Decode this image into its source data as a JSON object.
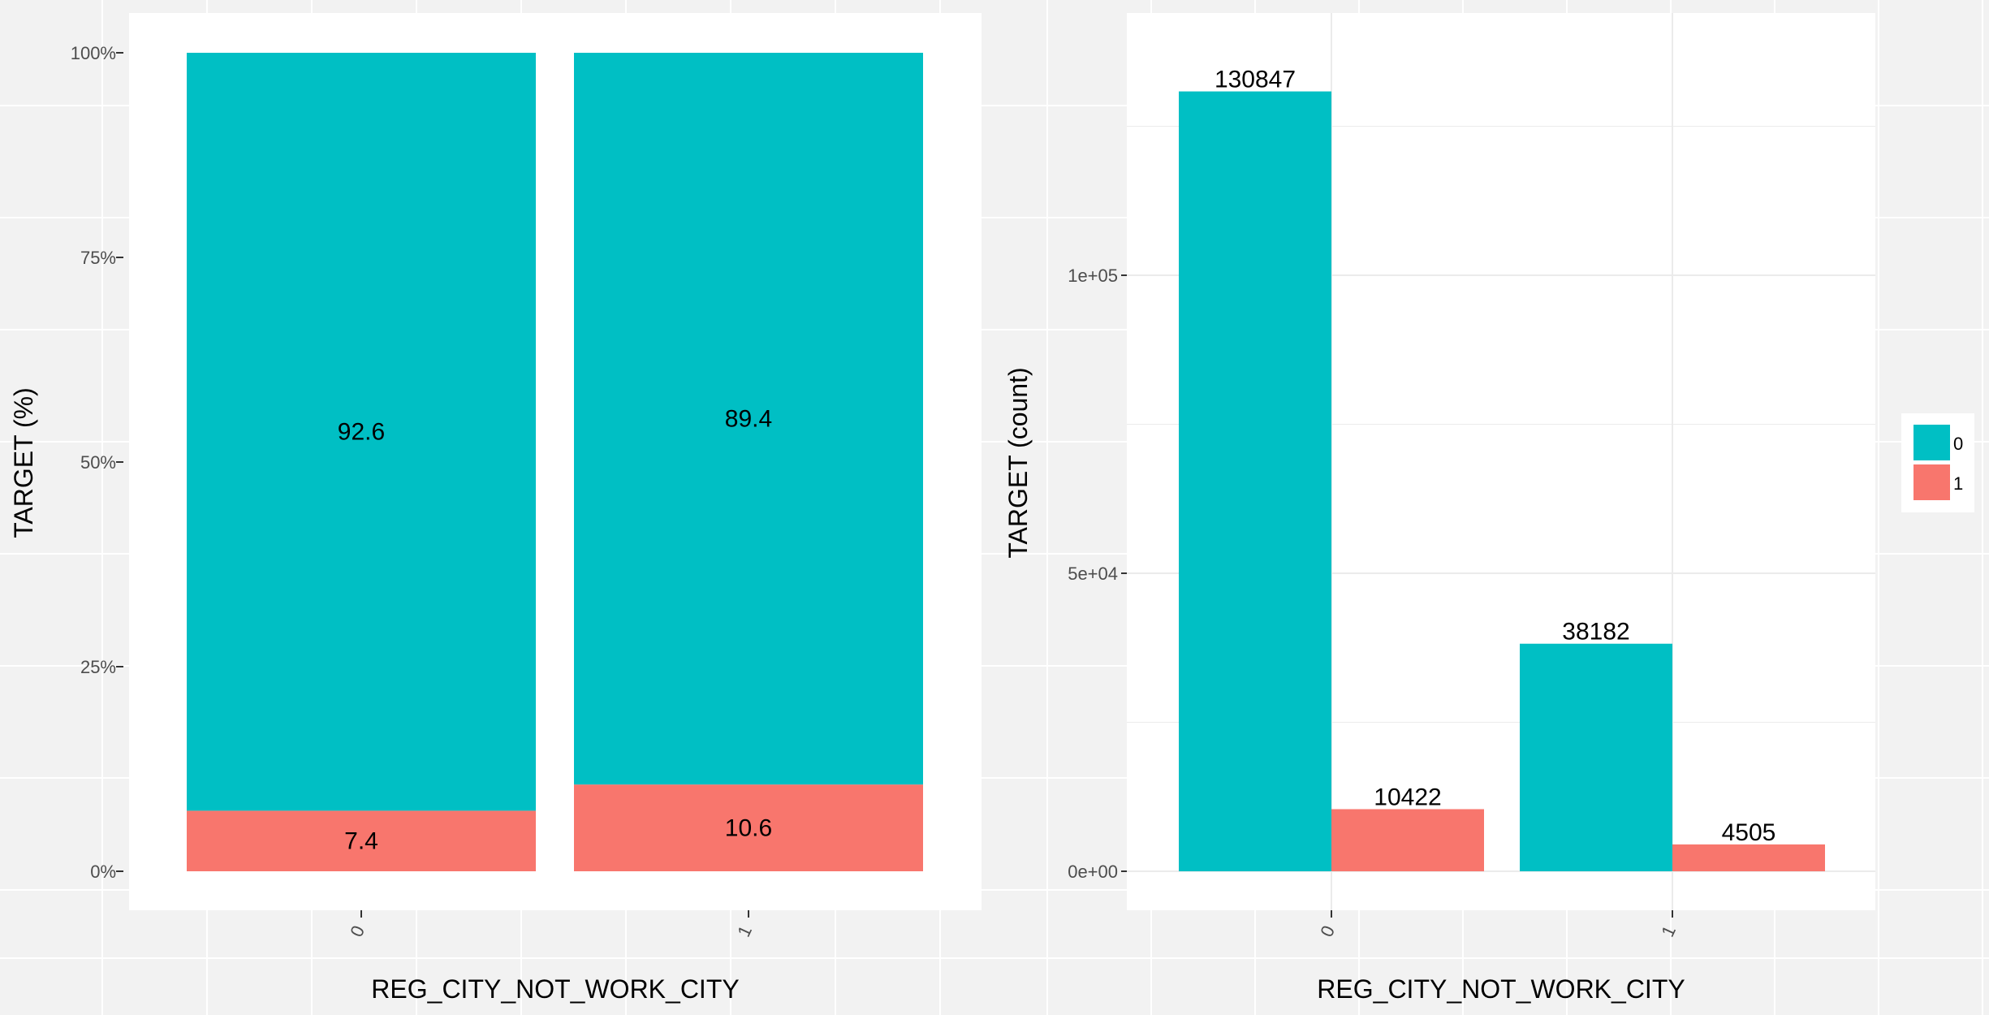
{
  "colors": {
    "background": "#f2f2f2",
    "panel": "#ffffff",
    "grid_major": "#ebebeb",
    "grid_minor": "#ffffff",
    "target_0": "#00bfc4",
    "target_1": "#f8766d"
  },
  "legend": {
    "placement": "right",
    "entries": [
      "0",
      "1"
    ]
  },
  "chart_data": [
    {
      "type": "bar",
      "stacked": true,
      "normalized": true,
      "categories": [
        "0",
        "1"
      ],
      "series": [
        {
          "name": "0",
          "values": [
            92.6,
            89.4
          ],
          "labels": [
            "92.6",
            "89.4"
          ]
        },
        {
          "name": "1",
          "values": [
            7.4,
            10.6
          ],
          "labels": [
            "7.4",
            "10.6"
          ]
        }
      ],
      "xlabel": "REG_CITY_NOT_WORK_CITY",
      "ylabel": "TARGET  (%)",
      "ylim": [
        0,
        100
      ],
      "yticks": [
        0,
        25,
        50,
        75,
        100
      ],
      "ytick_labels": [
        "0%",
        "25%",
        "50%",
        "75%",
        "100%"
      ],
      "grid": true
    },
    {
      "type": "bar",
      "stacked": false,
      "categories": [
        "0",
        "1"
      ],
      "series": [
        {
          "name": "0",
          "values": [
            130847,
            38182
          ],
          "labels": [
            "130847",
            "38182"
          ]
        },
        {
          "name": "1",
          "values": [
            10422,
            4505
          ],
          "labels": [
            "10422",
            "4505"
          ]
        }
      ],
      "xlabel": "REG_CITY_NOT_WORK_CITY",
      "ylabel": "TARGET  (count)",
      "ylim": [
        0,
        137389
      ],
      "yticks": [
        0,
        50000,
        100000
      ],
      "ytick_labels": [
        "0e+00",
        "5e+04",
        "1e+05"
      ],
      "grid": true
    }
  ]
}
